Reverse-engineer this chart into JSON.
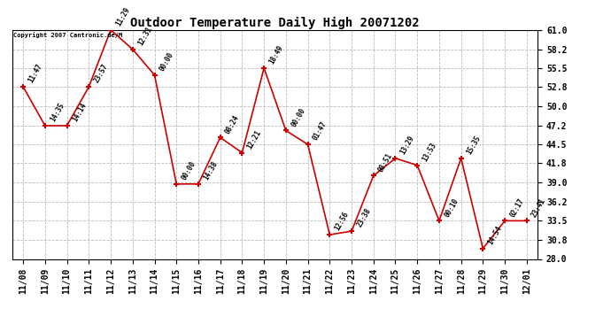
{
  "title": "Outdoor Temperature Daily High 20071202",
  "copyright": "Copyright 2007 Cantronic.de/M",
  "x_labels": [
    "11/08",
    "11/09",
    "11/10",
    "11/11",
    "11/12",
    "11/13",
    "11/14",
    "11/15",
    "11/16",
    "11/17",
    "11/18",
    "11/19",
    "11/20",
    "11/21",
    "11/22",
    "11/23",
    "11/24",
    "11/25",
    "11/26",
    "11/27",
    "11/28",
    "11/29",
    "11/30",
    "12/01"
  ],
  "y_values": [
    52.8,
    47.2,
    47.2,
    52.8,
    61.0,
    58.2,
    54.5,
    38.8,
    38.8,
    45.5,
    43.3,
    55.5,
    46.5,
    44.5,
    31.5,
    32.0,
    40.0,
    42.5,
    41.5,
    33.5,
    42.5,
    29.5,
    33.5,
    33.5
  ],
  "annotations": [
    "11:47",
    "14:35",
    "14:14",
    "23:57",
    "11:29",
    "12:31",
    "00:00",
    "00:00",
    "14:38",
    "08:24",
    "12:21",
    "18:49",
    "00:00",
    "01:47",
    "12:56",
    "23:38",
    "08:51",
    "13:29",
    "13:53",
    "00:10",
    "15:35",
    "14:54",
    "02:17",
    "23:41"
  ],
  "y_ticks": [
    28.0,
    30.8,
    33.5,
    36.2,
    39.0,
    41.8,
    44.5,
    47.2,
    50.0,
    52.8,
    55.5,
    58.2,
    61.0
  ],
  "y_min": 28.0,
  "y_max": 61.0,
  "line_color": "#cc0000",
  "marker_color": "#cc0000",
  "grid_color": "#bbbbbb",
  "background_color": "#ffffff",
  "title_fontsize": 10,
  "annotation_fontsize": 5.5,
  "tick_fontsize": 7,
  "copyright_fontsize": 5
}
